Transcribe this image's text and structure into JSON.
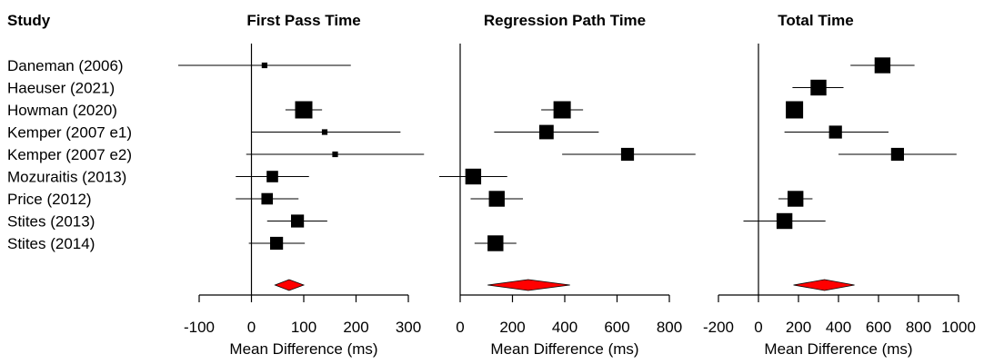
{
  "chart_data": {
    "type": "forest",
    "study_header": "Study",
    "studies": [
      "Daneman (2006)",
      "Haeuser (2021)",
      "Howman (2020)",
      "Kemper (2007 e1)",
      "Kemper (2007 e2)",
      "Mozuraitis (2013)",
      "Price (2012)",
      "Stites (2013)",
      "Stites (2014)"
    ],
    "panels": [
      {
        "title": "First Pass Time",
        "xlabel": "Mean Difference (ms)",
        "xlim": [
          -100,
          300
        ],
        "ticks": [
          -100,
          0,
          100,
          200,
          300
        ],
        "tick_labels": [
          "-100",
          "0",
          "100",
          "200",
          "300"
        ],
        "estimates": [
          {
            "study": "Daneman (2006)",
            "mean": 25,
            "lo": -140,
            "hi": 190,
            "weight": 1
          },
          {
            "study": "Haeuser (2021)",
            "mean": null,
            "lo": null,
            "hi": null,
            "weight": 0
          },
          {
            "study": "Howman (2020)",
            "mean": 100,
            "lo": 65,
            "hi": 135,
            "weight": 5
          },
          {
            "study": "Kemper (2007 e1)",
            "mean": 140,
            "lo": 0,
            "hi": 285,
            "weight": 1
          },
          {
            "study": "Kemper (2007 e2)",
            "mean": 160,
            "lo": -10,
            "hi": 330,
            "weight": 1
          },
          {
            "study": "Mozuraitis (2013)",
            "mean": 40,
            "lo": -30,
            "hi": 110,
            "weight": 3
          },
          {
            "study": "Price (2012)",
            "mean": 30,
            "lo": -30,
            "hi": 90,
            "weight": 3
          },
          {
            "study": "Stites (2013)",
            "mean": 88,
            "lo": 30,
            "hi": 145,
            "weight": 3.5
          },
          {
            "study": "Stites (2014)",
            "mean": 48,
            "lo": -5,
            "hi": 102,
            "weight": 3.5
          }
        ],
        "pooled": {
          "mean": 72,
          "lo": 45,
          "hi": 100
        }
      },
      {
        "title": "Regression Path Time",
        "xlabel": "Mean Difference (ms)",
        "xlim": [
          0,
          800
        ],
        "ticks": [
          0,
          200,
          400,
          600,
          800
        ],
        "tick_labels": [
          "0",
          "200",
          "400",
          "600",
          "800"
        ],
        "estimates": [
          {
            "study": "Daneman (2006)",
            "mean": null,
            "lo": null,
            "hi": null,
            "weight": 0
          },
          {
            "study": "Haeuser (2021)",
            "mean": null,
            "lo": null,
            "hi": null,
            "weight": 0
          },
          {
            "study": "Howman (2020)",
            "mean": 390,
            "lo": 310,
            "hi": 470,
            "weight": 5
          },
          {
            "study": "Kemper (2007 e1)",
            "mean": 330,
            "lo": 130,
            "hi": 530,
            "weight": 4
          },
          {
            "study": "Kemper (2007 e2)",
            "mean": 640,
            "lo": 390,
            "hi": 900,
            "weight": 3.5
          },
          {
            "study": "Mozuraitis (2013)",
            "mean": 50,
            "lo": -80,
            "hi": 180,
            "weight": 4.5
          },
          {
            "study": "Price (2012)",
            "mean": 140,
            "lo": 40,
            "hi": 240,
            "weight": 4.5
          },
          {
            "study": "Stites (2013)",
            "mean": null,
            "lo": null,
            "hi": null,
            "weight": 0
          },
          {
            "study": "Stites (2014)",
            "mean": 135,
            "lo": 55,
            "hi": 215,
            "weight": 4.5
          }
        ],
        "pooled": {
          "mean": 260,
          "lo": 105,
          "hi": 420
        }
      },
      {
        "title": "Total Time",
        "xlabel": "Mean Difference (ms)",
        "xlim": [
          -200,
          1000
        ],
        "ticks": [
          -200,
          0,
          200,
          400,
          600,
          800,
          1000
        ],
        "tick_labels": [
          "-200",
          "0",
          "200",
          "400",
          "600",
          "800",
          "1000"
        ],
        "estimates": [
          {
            "study": "Daneman (2006)",
            "mean": 620,
            "lo": 460,
            "hi": 780,
            "weight": 4.5
          },
          {
            "study": "Haeuser (2021)",
            "mean": 300,
            "lo": 170,
            "hi": 425,
            "weight": 4.5
          },
          {
            "study": "Howman (2020)",
            "mean": 180,
            "lo": 150,
            "hi": 210,
            "weight": 5
          },
          {
            "study": "Kemper (2007 e1)",
            "mean": 385,
            "lo": 130,
            "hi": 650,
            "weight": 3.5
          },
          {
            "study": "Kemper (2007 e2)",
            "mean": 695,
            "lo": 400,
            "hi": 990,
            "weight": 3.5
          },
          {
            "study": "Mozuraitis (2013)",
            "mean": null,
            "lo": null,
            "hi": null,
            "weight": 0
          },
          {
            "study": "Price (2012)",
            "mean": 185,
            "lo": 100,
            "hi": 270,
            "weight": 4.5
          },
          {
            "study": "Stites (2013)",
            "mean": 130,
            "lo": -75,
            "hi": 335,
            "weight": 4.5
          },
          {
            "study": "Stites (2014)",
            "mean": null,
            "lo": null,
            "hi": null,
            "weight": 0
          }
        ],
        "pooled": {
          "mean": 330,
          "lo": 175,
          "hi": 480
        }
      }
    ],
    "colors": {
      "marker": "#000000",
      "pooled": "#ff0000",
      "line": "#000000"
    }
  }
}
